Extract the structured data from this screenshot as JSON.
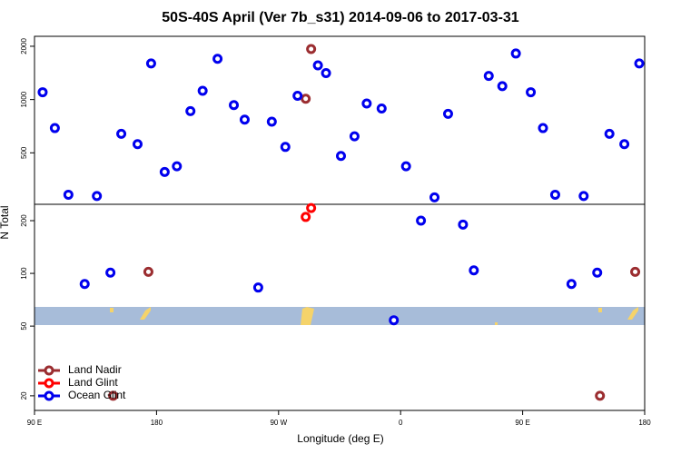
{
  "chart_data": [
    {
      "type": "scatter",
      "title": "50S-40S April (Ver 7b_s31)   2014-09-06 to 2017-03-31",
      "xlim": [
        90,
        540
      ],
      "ylim": [
        256,
        2276
      ],
      "yticks": [
        500,
        1000,
        2000
      ],
      "log_y": true,
      "series": [
        {
          "color": "#9b2d30",
          "x": [
            290,
            294
          ],
          "values": [
            1010,
            1930
          ]
        },
        {
          "color": "#0000ee",
          "x": [
            96,
            105,
            115,
            136,
            154,
            166,
            176,
            186,
            195,
            205,
            214,
            225,
            237,
            245,
            265,
            275,
            284,
            299,
            305,
            316,
            326,
            335,
            346,
            364,
            385,
            395,
            425,
            435,
            445,
            456,
            465,
            474,
            495,
            514,
            525,
            536
          ],
          "values": [
            1100,
            690,
            290,
            285,
            640,
            560,
            1600,
            390,
            420,
            860,
            1120,
            1700,
            930,
            770,
            750,
            540,
            1050,
            1560,
            1410,
            480,
            620,
            950,
            890,
            420,
            280,
            830,
            1360,
            1190,
            1820,
            1100,
            690,
            290,
            285,
            640,
            560,
            1600
          ]
        }
      ]
    },
    {
      "type": "scatter",
      "xlabel": "Longitude (deg E)",
      "ylabel": "N Total",
      "xlim": [
        90,
        540
      ],
      "xticks": [
        {
          "value": 90,
          "label": "90 E"
        },
        180,
        {
          "value": 270,
          "label": "90 W"
        },
        {
          "value": 360,
          "label": "0"
        },
        {
          "value": 450,
          "label": "90 E"
        },
        {
          "value": 540,
          "label": "180"
        }
      ],
      "ylim": [
        16.5,
        248
      ],
      "yticks": [
        20,
        50,
        100,
        200
      ],
      "log_y": true,
      "legend": "lower left",
      "series": [
        {
          "name": "Land Nadir",
          "color": "#9b2d30",
          "x": [
            174,
            533,
            148,
            507
          ],
          "values": [
            102,
            102,
            20,
            20
          ]
        },
        {
          "name": "Land Glint",
          "color": "#ff0000",
          "x": [
            290,
            294
          ],
          "values": [
            210,
            236
          ]
        },
        {
          "name": "Ocean Glint",
          "color": "#0000ee",
          "x": [
            127,
            146,
            255,
            355,
            375,
            406,
            414,
            486,
            505
          ],
          "values": [
            87,
            101,
            83,
            54,
            200,
            190,
            104,
            87,
            101
          ]
        }
      ]
    }
  ]
}
